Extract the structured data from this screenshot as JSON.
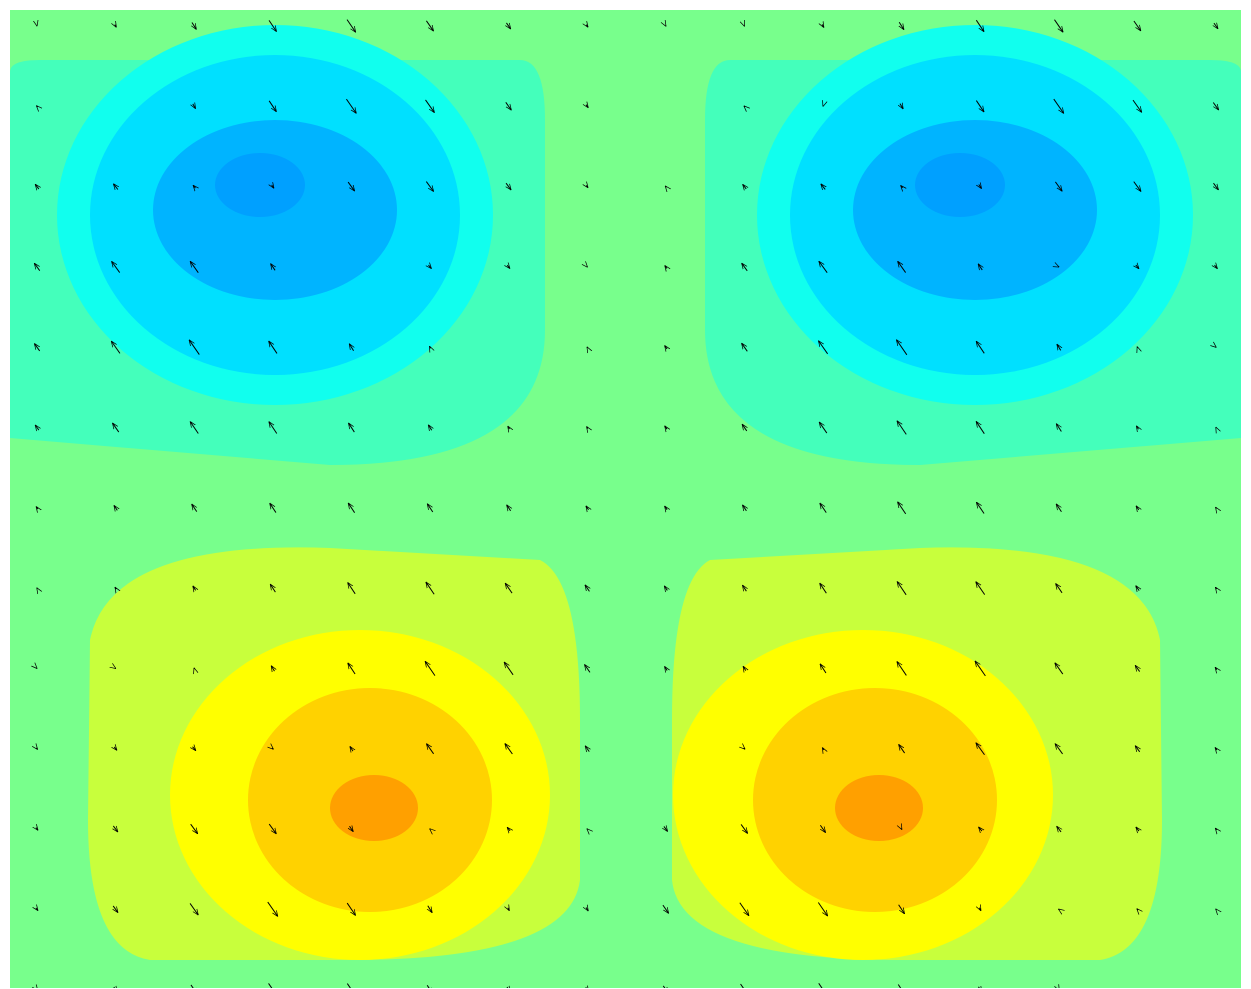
{
  "chart_data": {
    "type": "contour",
    "colors": [
      "#78ff8c",
      "#44ffbb",
      "#11ffee",
      "#00e0ff",
      "#00b4ff",
      "#00a0ff",
      "#c8ff3c",
      "#ffff00",
      "#ffd200",
      "#ffa000"
    ]
  }
}
